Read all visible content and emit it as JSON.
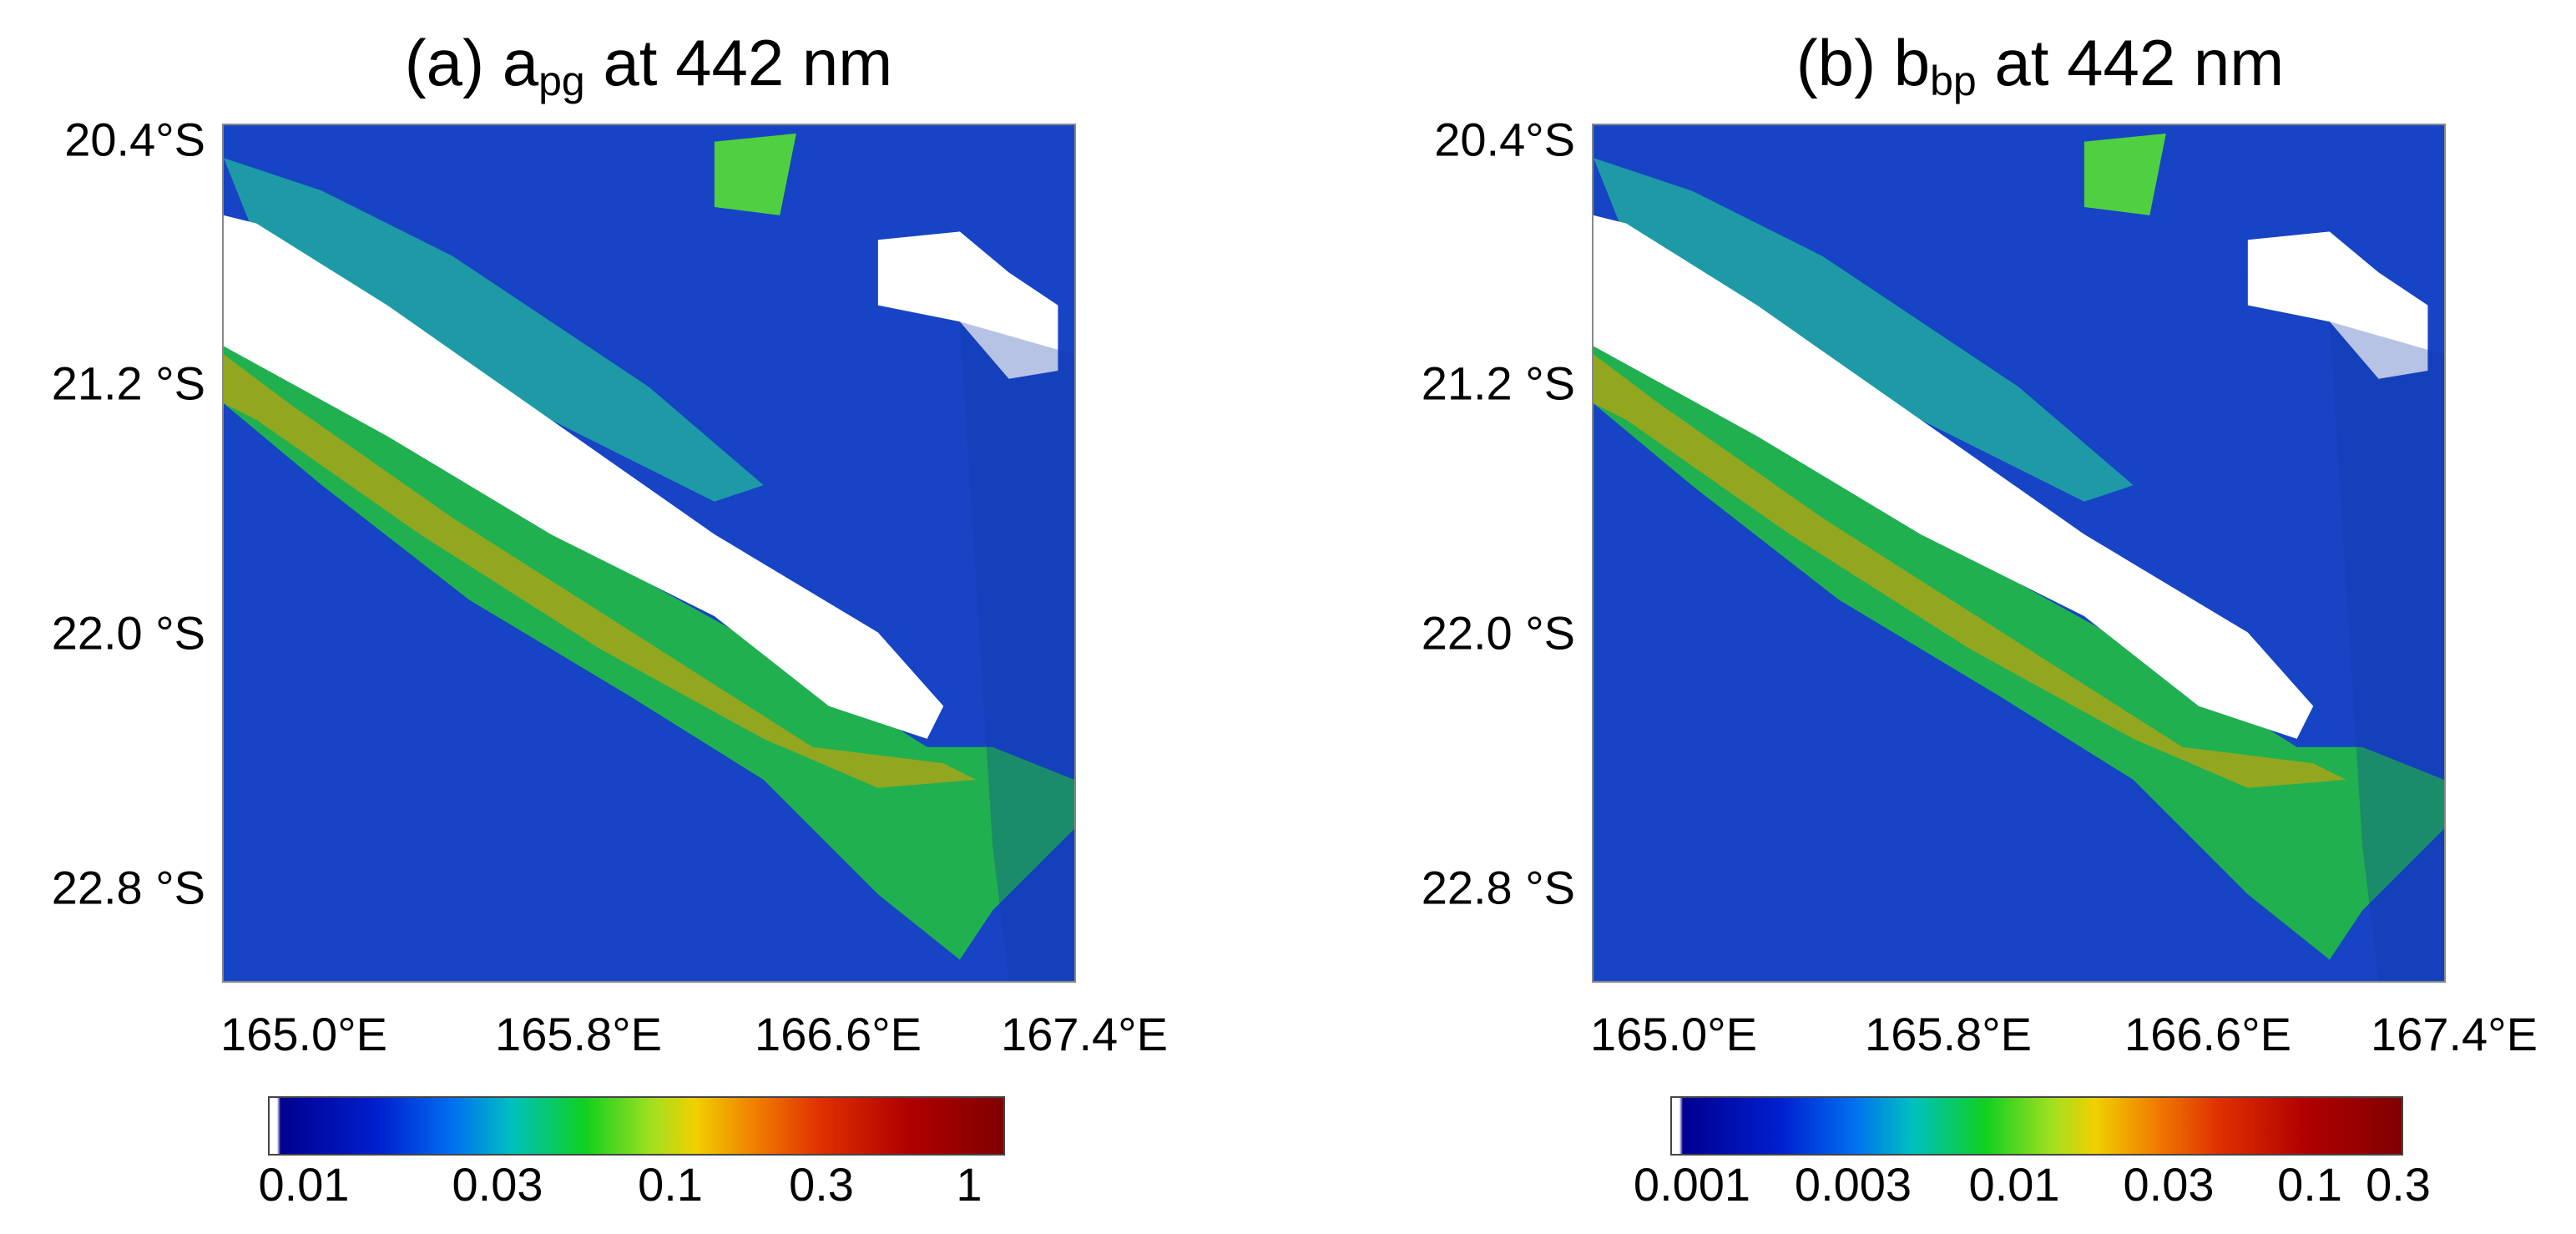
{
  "panels": [
    {
      "title": {
        "prefix": "(a) a",
        "sub": "pg",
        "suffix": " at 442 nm"
      },
      "lat_labels": [
        "20.4°S",
        "21.2 °S",
        "22.0 °S",
        "22.8 °S"
      ],
      "lon_labels": [
        "165.0°E",
        "165.8°E",
        "166.6°E",
        "167.4°E"
      ],
      "colorbar_labels": [
        "0.01",
        "0.03",
        "0.1",
        "0.3",
        "1"
      ]
    },
    {
      "title": {
        "prefix": "(b) b",
        "sub": "bp",
        "suffix": " at 442 nm"
      },
      "lat_labels": [
        "20.4°S",
        "21.2 °S",
        "22.0 °S",
        "22.8 °S"
      ],
      "lon_labels": [
        "165.0°E",
        "165.8°E",
        "166.6°E",
        "167.4°E"
      ],
      "colorbar_labels": [
        "0.001",
        "0.003",
        "0.01",
        "0.03",
        "0.1",
        "0.3"
      ]
    }
  ]
}
